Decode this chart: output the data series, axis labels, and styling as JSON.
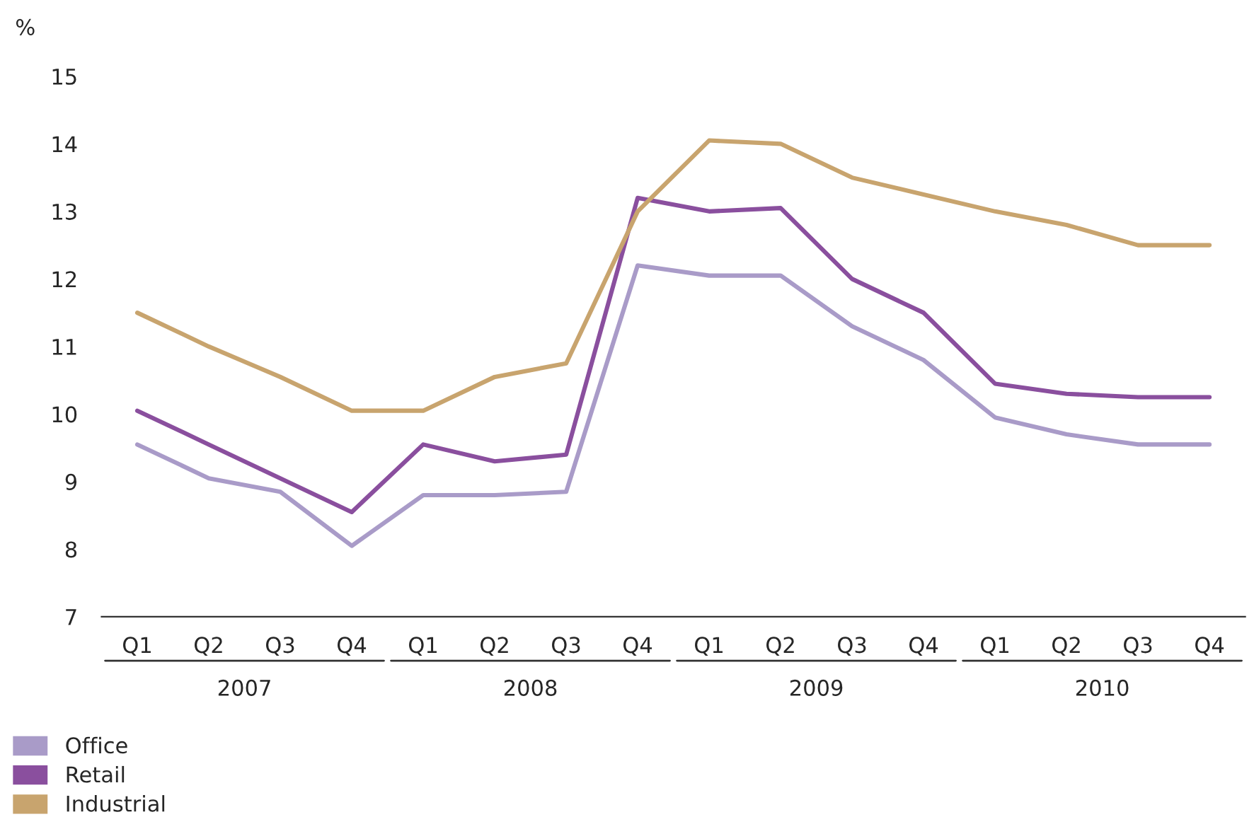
{
  "chart_data": {
    "type": "line",
    "ylabel": "%",
    "categories": [
      "Q1",
      "Q2",
      "Q3",
      "Q4",
      "Q1",
      "Q2",
      "Q3",
      "Q4",
      "Q1",
      "Q2",
      "Q3",
      "Q4",
      "Q1",
      "Q2",
      "Q3",
      "Q4"
    ],
    "annotations": [
      "2007",
      "2008",
      "2009",
      "2010"
    ],
    "series": [
      {
        "name": "Office",
        "color": "#a99bc8",
        "values": [
          9.55,
          9.05,
          8.85,
          8.05,
          8.8,
          8.8,
          8.85,
          12.2,
          12.05,
          12.05,
          11.3,
          10.8,
          9.95,
          9.7,
          9.55,
          9.55
        ]
      },
      {
        "name": "Retail",
        "color": "#8a4f9e",
        "values": [
          10.05,
          9.55,
          9.05,
          8.55,
          9.55,
          9.3,
          9.4,
          13.2,
          13.0,
          13.05,
          12.0,
          11.5,
          10.45,
          10.3,
          10.25,
          10.25
        ]
      },
      {
        "name": "Industrial",
        "color": "#c8a46e",
        "values": [
          11.5,
          11.0,
          10.55,
          10.05,
          10.05,
          10.55,
          10.75,
          13.0,
          14.05,
          14.0,
          13.5,
          13.25,
          13.0,
          12.8,
          12.5,
          12.5
        ]
      }
    ],
    "ylim": [
      7,
      15
    ],
    "yticks": [
      7,
      8,
      9,
      10,
      11,
      12,
      13,
      14,
      15
    ],
    "grid": false,
    "legend": "bottom left",
    "line_style": "solid",
    "marker": "none"
  }
}
